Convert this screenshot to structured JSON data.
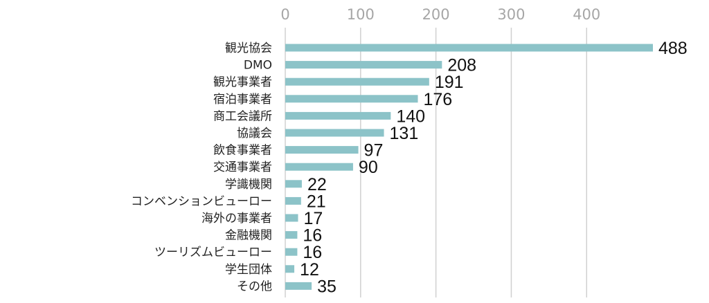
{
  "chart_data": {
    "type": "bar",
    "orientation": "horizontal",
    "categories": [
      "観光協会",
      "DMO",
      "観光事業者",
      "宿泊事業者",
      "商工会議所",
      "協議会",
      "飲食事業者",
      "交通事業者",
      "学識機関",
      "コンベンションビューロー",
      "海外の事業者",
      "金融機関",
      "ツーリズムビューロー",
      "学生団体",
      "その他"
    ],
    "values": [
      488,
      208,
      191,
      176,
      140,
      131,
      97,
      90,
      22,
      21,
      17,
      16,
      16,
      12,
      35
    ],
    "xticks": [
      0,
      100,
      200,
      300,
      400
    ],
    "xlim": [
      0,
      488
    ],
    "grid": true,
    "legend": "none",
    "bar_color": "#8cc3c8",
    "grid_color": "#d0d0d0",
    "tick_color": "#a6a6a6"
  }
}
